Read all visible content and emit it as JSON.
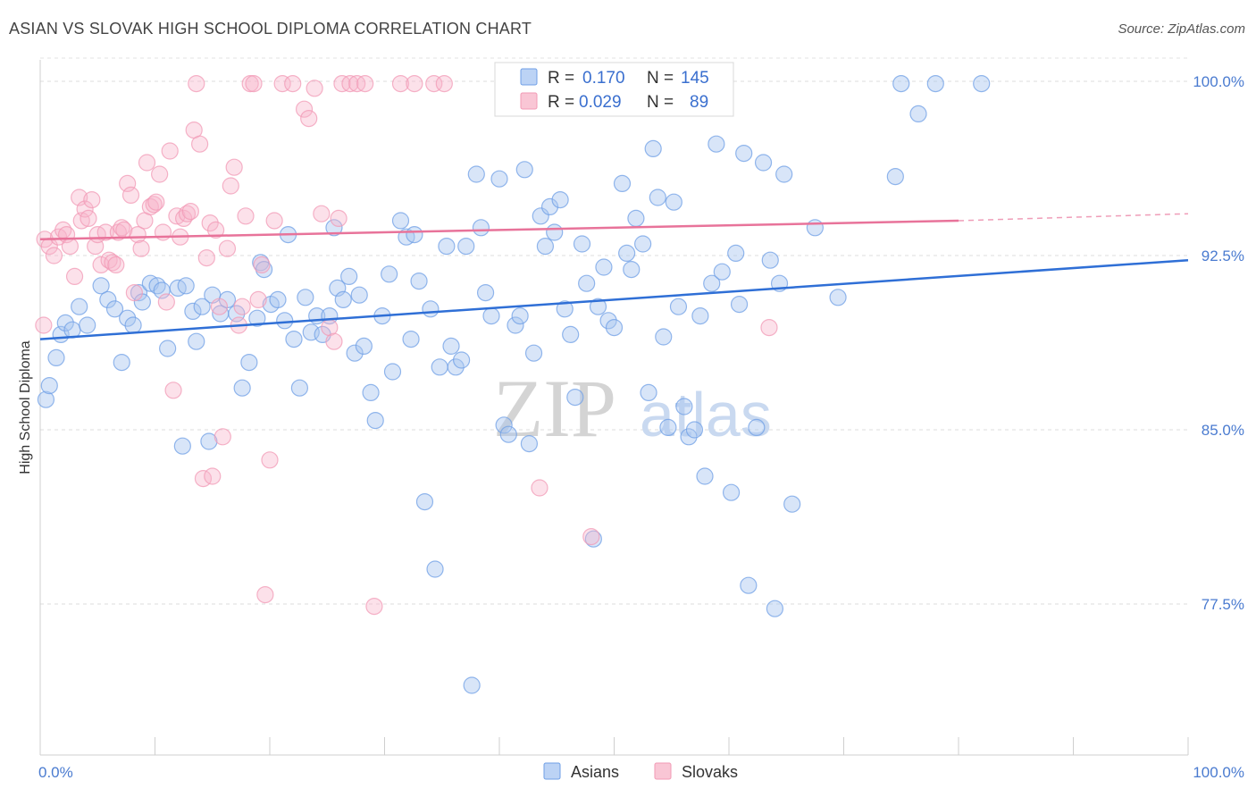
{
  "header": {
    "title": "ASIAN VS SLOVAK HIGH SCHOOL DIPLOMA CORRELATION CHART",
    "source": "Source: ZipAtlas.com"
  },
  "watermark": {
    "zip": "ZIP",
    "atlas": "atlas"
  },
  "chart_data": {
    "type": "scatter",
    "title": "ASIAN VS SLOVAK HIGH SCHOOL DIPLOMA CORRELATION CHART",
    "xlabel": "",
    "ylabel": "High School Diploma",
    "xlim": [
      0,
      100
    ],
    "ylim": [
      71,
      101.5
    ],
    "x_tick_labels": [
      "0.0%",
      "100.0%"
    ],
    "y_ticks": [
      77.5,
      85.0,
      92.5,
      100.0
    ],
    "y_tick_labels": [
      "77.5%",
      "85.0%",
      "92.5%",
      "100.0%"
    ],
    "grid": "horizontal dashed",
    "legend_position": "top-center",
    "stats": [
      {
        "r_label": "R =",
        "r": "0.170",
        "n_label": "N =",
        "n": "145"
      },
      {
        "r_label": "R =",
        "r": "0.029",
        "n_label": "N =",
        "n": "89"
      }
    ],
    "series": [
      {
        "name": "Asians",
        "color": "#6f9fe6",
        "trend": {
          "x": [
            0,
            100
          ],
          "y": [
            88.9,
            92.3
          ]
        },
        "points": [
          [
            0.5,
            86.3
          ],
          [
            0.8,
            86.9
          ],
          [
            1.4,
            88.1
          ],
          [
            1.8,
            89.1
          ],
          [
            2.2,
            89.6
          ],
          [
            2.8,
            89.3
          ],
          [
            3.4,
            90.3
          ],
          [
            4.1,
            89.5
          ],
          [
            5.3,
            91.2
          ],
          [
            5.9,
            90.6
          ],
          [
            6.5,
            90.2
          ],
          [
            7.1,
            87.9
          ],
          [
            7.6,
            89.8
          ],
          [
            8.1,
            89.5
          ],
          [
            8.6,
            90.9
          ],
          [
            8.9,
            90.5
          ],
          [
            9.6,
            91.3
          ],
          [
            10.2,
            91.2
          ],
          [
            10.6,
            91.0
          ],
          [
            11.1,
            88.5
          ],
          [
            12.0,
            91.1
          ],
          [
            12.4,
            84.3
          ],
          [
            12.7,
            91.2
          ],
          [
            13.3,
            90.1
          ],
          [
            13.6,
            88.8
          ],
          [
            14.1,
            90.3
          ],
          [
            14.7,
            84.5
          ],
          [
            15.0,
            90.8
          ],
          [
            15.7,
            90.0
          ],
          [
            16.3,
            90.6
          ],
          [
            17.1,
            90.0
          ],
          [
            17.6,
            86.8
          ],
          [
            18.2,
            87.9
          ],
          [
            18.9,
            89.8
          ],
          [
            19.2,
            92.2
          ],
          [
            19.5,
            91.9
          ],
          [
            20.1,
            90.4
          ],
          [
            20.7,
            90.6
          ],
          [
            21.3,
            89.7
          ],
          [
            21.6,
            93.4
          ],
          [
            22.1,
            88.9
          ],
          [
            22.6,
            86.8
          ],
          [
            23.1,
            90.7
          ],
          [
            23.6,
            89.2
          ],
          [
            24.1,
            89.9
          ],
          [
            24.6,
            89.1
          ],
          [
            25.2,
            89.9
          ],
          [
            25.6,
            93.7
          ],
          [
            25.9,
            91.1
          ],
          [
            26.4,
            90.6
          ],
          [
            26.9,
            91.6
          ],
          [
            27.4,
            88.3
          ],
          [
            27.8,
            90.8
          ],
          [
            28.2,
            88.6
          ],
          [
            28.8,
            86.6
          ],
          [
            29.2,
            85.4
          ],
          [
            29.8,
            89.9
          ],
          [
            30.4,
            91.7
          ],
          [
            30.7,
            87.5
          ],
          [
            31.4,
            94.0
          ],
          [
            31.9,
            93.3
          ],
          [
            32.3,
            88.9
          ],
          [
            32.6,
            93.4
          ],
          [
            33.0,
            91.4
          ],
          [
            33.5,
            81.9
          ],
          [
            34.0,
            90.2
          ],
          [
            34.4,
            79.0
          ],
          [
            34.8,
            87.7
          ],
          [
            35.4,
            92.9
          ],
          [
            35.8,
            88.6
          ],
          [
            36.2,
            87.7
          ],
          [
            36.7,
            88.0
          ],
          [
            37.1,
            92.9
          ],
          [
            37.6,
            74.0
          ],
          [
            38.0,
            96.0
          ],
          [
            38.4,
            93.7
          ],
          [
            38.8,
            90.9
          ],
          [
            39.3,
            89.9
          ],
          [
            40.0,
            95.8
          ],
          [
            40.4,
            85.2
          ],
          [
            40.8,
            84.8
          ],
          [
            41.4,
            89.5
          ],
          [
            41.8,
            89.9
          ],
          [
            42.2,
            96.2
          ],
          [
            42.6,
            84.4
          ],
          [
            43.0,
            88.3
          ],
          [
            43.6,
            94.2
          ],
          [
            44.0,
            92.9
          ],
          [
            44.4,
            94.6
          ],
          [
            44.8,
            93.5
          ],
          [
            45.3,
            94.9
          ],
          [
            45.7,
            90.2
          ],
          [
            46.2,
            89.1
          ],
          [
            46.6,
            86.4
          ],
          [
            47.2,
            93.0
          ],
          [
            47.6,
            91.3
          ],
          [
            48.2,
            80.3
          ],
          [
            48.6,
            90.3
          ],
          [
            49.1,
            92.0
          ],
          [
            49.5,
            89.7
          ],
          [
            50.0,
            89.4
          ],
          [
            50.7,
            95.6
          ],
          [
            51.1,
            92.6
          ],
          [
            51.5,
            91.9
          ],
          [
            51.9,
            94.1
          ],
          [
            52.5,
            93.0
          ],
          [
            53.0,
            86.6
          ],
          [
            53.4,
            97.1
          ],
          [
            53.8,
            95.0
          ],
          [
            54.3,
            89.0
          ],
          [
            54.7,
            85.1
          ],
          [
            55.2,
            94.8
          ],
          [
            55.6,
            90.3
          ],
          [
            56.1,
            86.0
          ],
          [
            56.5,
            84.7
          ],
          [
            57.0,
            85.0
          ],
          [
            57.5,
            89.9
          ],
          [
            57.9,
            83.0
          ],
          [
            58.5,
            91.3
          ],
          [
            58.9,
            97.3
          ],
          [
            59.4,
            91.8
          ],
          [
            60.2,
            82.3
          ],
          [
            60.6,
            92.6
          ],
          [
            60.9,
            90.4
          ],
          [
            61.3,
            96.9
          ],
          [
            61.7,
            78.3
          ],
          [
            62.4,
            85.1
          ],
          [
            63.0,
            96.5
          ],
          [
            63.6,
            92.3
          ],
          [
            64.0,
            77.3
          ],
          [
            64.4,
            91.3
          ],
          [
            64.8,
            96.0
          ],
          [
            65.5,
            81.8
          ],
          [
            67.5,
            93.7
          ],
          [
            69.5,
            90.7
          ],
          [
            74.5,
            95.9
          ],
          [
            75.0,
            99.9
          ],
          [
            76.5,
            98.6
          ],
          [
            78.0,
            99.9
          ],
          [
            82.0,
            99.9
          ]
        ]
      },
      {
        "name": "Slovaks",
        "color": "#f29ab5",
        "trend": {
          "x": [
            0,
            80
          ],
          "y": [
            93.2,
            94.0
          ]
        },
        "trend_dashed": {
          "x": [
            80,
            100
          ],
          "y": [
            94.0,
            94.3
          ]
        },
        "points": [
          [
            0.3,
            89.5
          ],
          [
            0.4,
            93.2
          ],
          [
            0.8,
            92.9
          ],
          [
            1.2,
            92.5
          ],
          [
            1.6,
            93.3
          ],
          [
            2.0,
            93.6
          ],
          [
            2.3,
            93.4
          ],
          [
            2.6,
            92.9
          ],
          [
            3.0,
            91.6
          ],
          [
            3.4,
            95.0
          ],
          [
            3.6,
            94.0
          ],
          [
            3.9,
            94.5
          ],
          [
            4.2,
            94.1
          ],
          [
            4.5,
            94.9
          ],
          [
            4.8,
            92.9
          ],
          [
            5.0,
            93.4
          ],
          [
            5.3,
            92.1
          ],
          [
            5.7,
            93.5
          ],
          [
            6.0,
            92.3
          ],
          [
            6.3,
            92.2
          ],
          [
            6.6,
            92.1
          ],
          [
            6.8,
            93.5
          ],
          [
            7.1,
            93.7
          ],
          [
            7.3,
            93.6
          ],
          [
            7.6,
            95.6
          ],
          [
            7.9,
            95.1
          ],
          [
            8.2,
            90.9
          ],
          [
            8.5,
            93.4
          ],
          [
            8.8,
            92.8
          ],
          [
            9.1,
            94.0
          ],
          [
            9.3,
            96.5
          ],
          [
            9.6,
            94.6
          ],
          [
            9.9,
            94.7
          ],
          [
            10.1,
            94.8
          ],
          [
            10.4,
            96.0
          ],
          [
            10.7,
            93.5
          ],
          [
            11.0,
            90.5
          ],
          [
            11.3,
            97.0
          ],
          [
            11.6,
            86.7
          ],
          [
            11.9,
            94.2
          ],
          [
            12.2,
            93.3
          ],
          [
            12.5,
            94.1
          ],
          [
            12.8,
            94.3
          ],
          [
            13.1,
            94.4
          ],
          [
            13.4,
            97.9
          ],
          [
            13.6,
            99.9
          ],
          [
            13.9,
            97.3
          ],
          [
            14.2,
            82.9
          ],
          [
            14.5,
            92.4
          ],
          [
            14.8,
            93.9
          ],
          [
            15.0,
            83.0
          ],
          [
            15.3,
            93.6
          ],
          [
            15.6,
            90.3
          ],
          [
            15.9,
            84.7
          ],
          [
            16.3,
            92.8
          ],
          [
            16.6,
            95.5
          ],
          [
            16.9,
            96.3
          ],
          [
            17.3,
            89.5
          ],
          [
            17.6,
            90.3
          ],
          [
            17.9,
            94.2
          ],
          [
            18.3,
            99.9
          ],
          [
            18.6,
            99.9
          ],
          [
            19.0,
            90.6
          ],
          [
            19.3,
            92.1
          ],
          [
            19.6,
            77.9
          ],
          [
            20.0,
            83.7
          ],
          [
            20.4,
            94.0
          ],
          [
            21.1,
            99.9
          ],
          [
            22.0,
            99.9
          ],
          [
            23.0,
            98.8
          ],
          [
            23.4,
            98.4
          ],
          [
            23.9,
            99.7
          ],
          [
            24.5,
            94.3
          ],
          [
            25.2,
            89.4
          ],
          [
            25.6,
            88.8
          ],
          [
            26.0,
            94.1
          ],
          [
            26.3,
            99.9
          ],
          [
            27.0,
            99.9
          ],
          [
            27.6,
            99.9
          ],
          [
            28.3,
            99.9
          ],
          [
            29.1,
            77.4
          ],
          [
            31.4,
            99.9
          ],
          [
            32.6,
            99.9
          ],
          [
            34.3,
            99.9
          ],
          [
            35.2,
            99.9
          ],
          [
            43.5,
            82.5
          ],
          [
            48.0,
            80.4
          ],
          [
            53.5,
            99.9
          ],
          [
            63.5,
            89.4
          ]
        ]
      }
    ]
  },
  "bottom_legend": {
    "asians": "Asians",
    "slovaks": "Slovaks"
  }
}
